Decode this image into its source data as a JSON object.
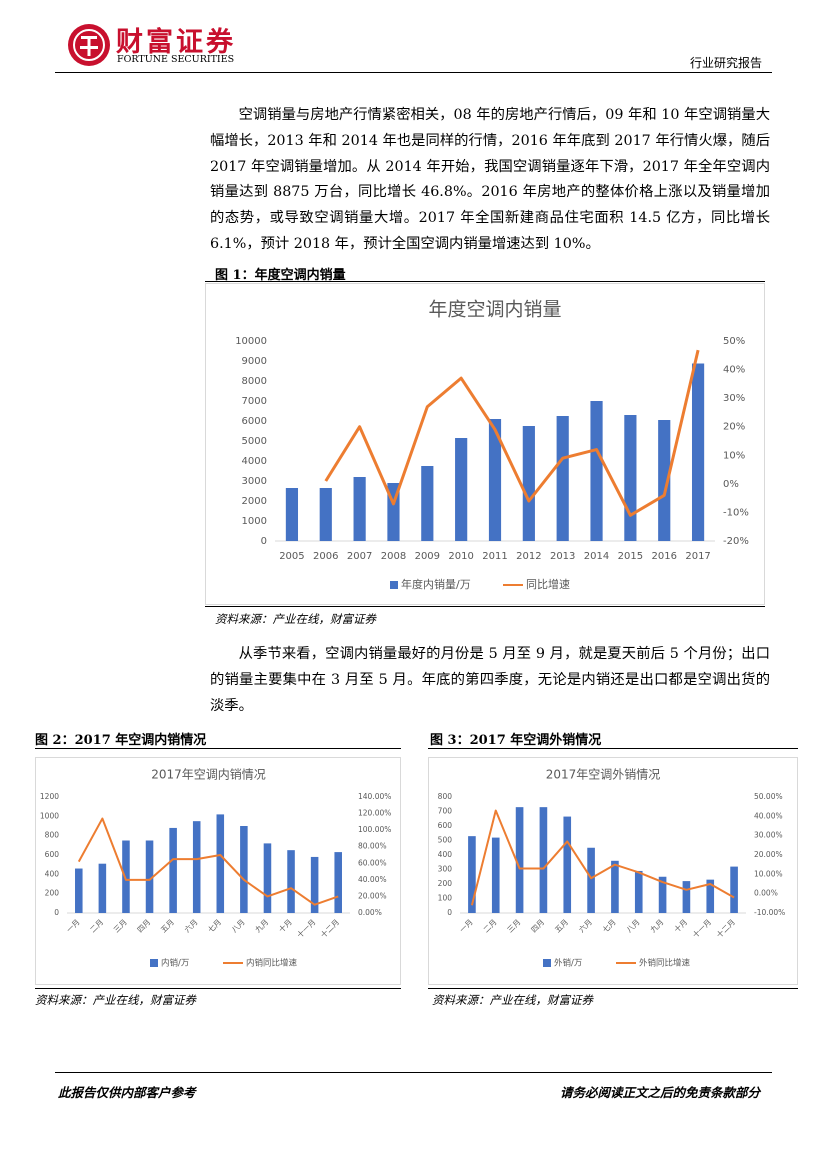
{
  "header": {
    "brand": "财富证券",
    "brand_en": "FORTUNE SECURITIES",
    "report_type": "行业研究报告"
  },
  "paragraphs": [
    "空调销量与房地产行情紧密相关，08 年的房地产行情后，09 年和 10 年空调销量大幅增长，2013 年和 2014 年也是同样的行情，2016 年年底到 2017 年行情火爆，随后 2017 年空调销量增加。从 2014 年开始，我国空调销量逐年下滑，2017 年全年空调内销量达到 8875 万台，同比增长 46.8%。2016 年房地产的整体价格上涨以及销量增加的态势，或导致空调销量大增。2017 年全国新建商品住宅面积 14.5 亿方，同比增长 6.1%，预计 2018 年，预计全国空调内销量增速达到 10%。",
    "从季节来看，空调内销量最好的月份是 5 月至 9 月，就是夏天前后 5 个月份；出口的销量主要集中在 3 月至 5 月。年底的第四季度，无论是内销还是出口都是空调出货的淡季。"
  ],
  "figures": [
    {
      "caption": "图 1：年度空调内销量",
      "source": "资料来源：产业在线，财富证券"
    },
    {
      "caption": "图 2：2017 年空调内销情况",
      "source": "资料来源：产业在线，财富证券"
    },
    {
      "caption": "图 3：2017 年空调外销情况",
      "source": "资料来源：产业在线，财富证券"
    }
  ],
  "footer": {
    "left": "此报告仅供内部客户参考",
    "right": "请务必阅读正文之后的免责条款部分"
  },
  "chart_data": [
    {
      "type": "combo",
      "title": "年度空调内销量",
      "grid": false,
      "categories": [
        "2005",
        "2006",
        "2007",
        "2008",
        "2009",
        "2010",
        "2011",
        "2012",
        "2013",
        "2014",
        "2015",
        "2016",
        "2017"
      ],
      "series": [
        {
          "name": "年度内销量/万",
          "type": "bar",
          "color": "#4472c4",
          "values": [
            2650,
            2650,
            3200,
            2900,
            3750,
            5150,
            6100,
            5750,
            6250,
            7000,
            6300,
            6050,
            8875
          ]
        },
        {
          "name": "同比增速",
          "type": "line",
          "axis": "y2",
          "color": "#ed7d31",
          "values": [
            null,
            1,
            20,
            -7,
            27,
            37,
            19,
            -6,
            9,
            12,
            -11,
            -4,
            46.8
          ]
        }
      ],
      "ylim": [
        0,
        10000
      ],
      "yticks": [
        0,
        1000,
        2000,
        3000,
        4000,
        5000,
        6000,
        7000,
        8000,
        9000,
        10000
      ],
      "y2lim": [
        -20,
        50
      ],
      "y2ticks": [
        {
          "value": -20,
          "label": "-20%"
        },
        {
          "value": -10,
          "label": "-10%"
        },
        {
          "value": 0,
          "label": "0%"
        },
        {
          "value": 10,
          "label": "10%"
        },
        {
          "value": 20,
          "label": "20%"
        },
        {
          "value": 30,
          "label": "30%"
        },
        {
          "value": 40,
          "label": "40%"
        },
        {
          "value": 50,
          "label": "50%"
        }
      ]
    },
    {
      "type": "combo",
      "title": "2017年空调内销情况",
      "grid": false,
      "categories": [
        "一月",
        "二月",
        "三月",
        "四月",
        "五月",
        "六月",
        "七月",
        "八月",
        "九月",
        "十月",
        "十一月",
        "十二月"
      ],
      "series": [
        {
          "name": "内销/万",
          "type": "bar",
          "color": "#4472c4",
          "values": [
            460,
            510,
            750,
            750,
            880,
            950,
            1020,
            900,
            720,
            650,
            580,
            630
          ]
        },
        {
          "name": "内销同比增速",
          "type": "line",
          "axis": "y2",
          "color": "#ed7d31",
          "values": [
            62,
            114,
            40,
            40,
            65,
            65,
            70,
            40,
            20,
            30,
            10,
            20
          ]
        }
      ],
      "ylim": [
        0,
        1200
      ],
      "yticks": [
        0,
        200,
        400,
        600,
        800,
        1000,
        1200
      ],
      "y2lim": [
        0,
        140
      ],
      "y2ticks": [
        {
          "value": 0,
          "label": "0.00%"
        },
        {
          "value": 20,
          "label": "20.00%"
        },
        {
          "value": 40,
          "label": "40.00%"
        },
        {
          "value": 60,
          "label": "60.00%"
        },
        {
          "value": 80,
          "label": "80.00%"
        },
        {
          "value": 100,
          "label": "100.00%"
        },
        {
          "value": 120,
          "label": "120.00%"
        },
        {
          "value": 140,
          "label": "140.00%"
        }
      ]
    },
    {
      "type": "combo",
      "title": "2017年空调外销情况",
      "grid": false,
      "categories": [
        "一月",
        "二月",
        "三月",
        "四月",
        "五月",
        "六月",
        "七月",
        "八月",
        "九月",
        "十月",
        "十一月",
        "十二月"
      ],
      "series": [
        {
          "name": "外销/万",
          "type": "bar",
          "color": "#4472c4",
          "values": [
            530,
            520,
            730,
            730,
            665,
            450,
            360,
            290,
            250,
            220,
            230,
            320
          ]
        },
        {
          "name": "外销同比增速",
          "type": "line",
          "axis": "y2",
          "color": "#ed7d31",
          "values": [
            -6,
            43,
            13,
            13,
            27,
            8,
            15,
            11,
            6,
            2,
            5,
            -2
          ]
        }
      ],
      "ylim": [
        0,
        800
      ],
      "yticks": [
        0,
        100,
        200,
        300,
        400,
        500,
        600,
        700,
        800
      ],
      "y2lim": [
        -10,
        50
      ],
      "y2ticks": [
        {
          "value": -10,
          "label": "-10.00%"
        },
        {
          "value": 0,
          "label": "0.00%"
        },
        {
          "value": 10,
          "label": "10.00%"
        },
        {
          "value": 20,
          "label": "20.00%"
        },
        {
          "value": 30,
          "label": "30.00%"
        },
        {
          "value": 40,
          "label": "40.00%"
        },
        {
          "value": 50,
          "label": "50.00%"
        }
      ]
    }
  ]
}
